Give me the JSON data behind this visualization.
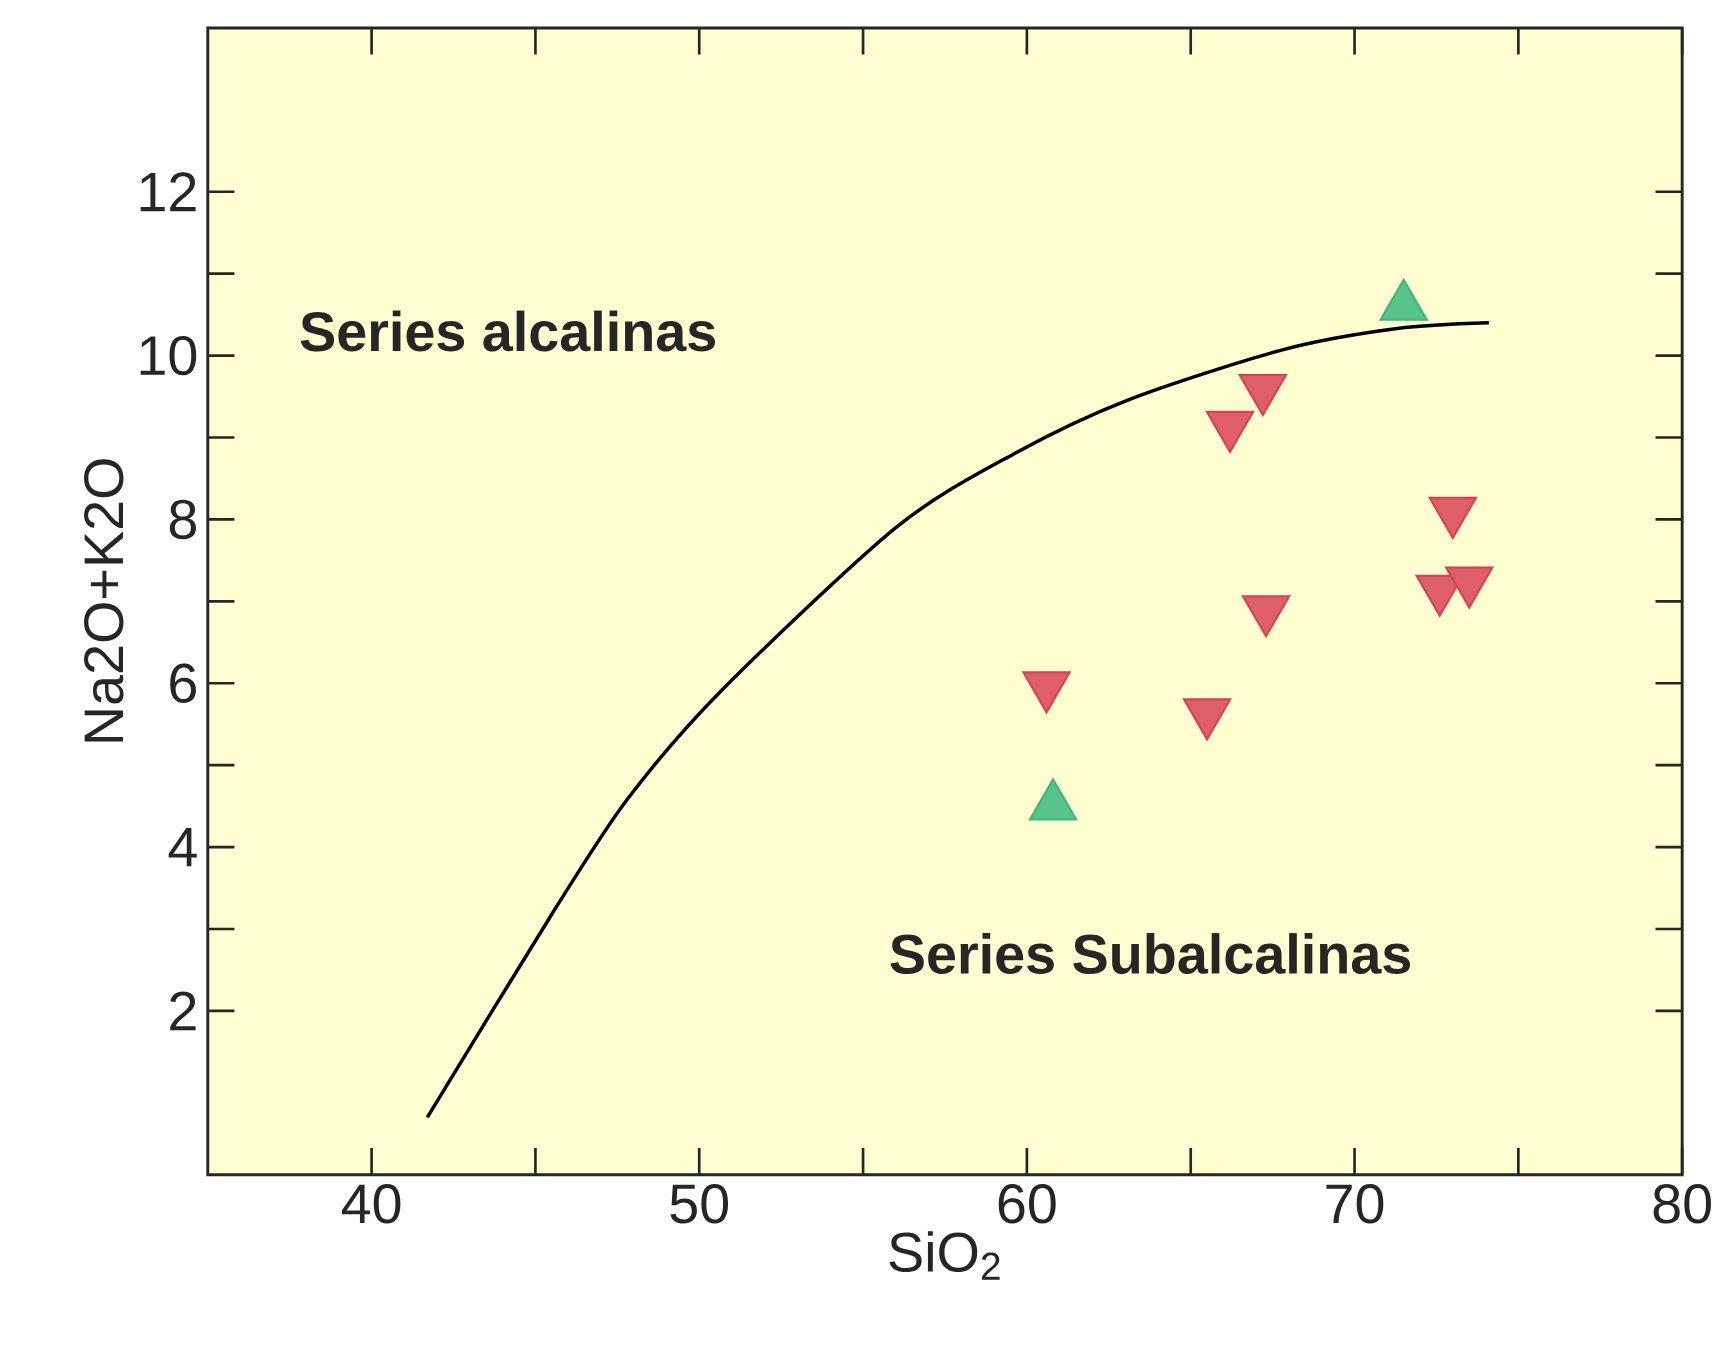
{
  "chart_data": {
    "type": "scatter",
    "xlabel": "SiO$_{2}$",
    "ylabel": "Na2O+K2O",
    "xlim": [
      35,
      80
    ],
    "ylim": [
      0,
      14
    ],
    "xticks": [
      40,
      50,
      60,
      70,
      80
    ],
    "yticks": [
      2,
      4,
      6,
      8,
      10,
      12
    ],
    "grid": false,
    "series": [
      {
        "type": "line",
        "color": "#000000",
        "marker": "none",
        "line_style": "solid",
        "x": [
          41.7,
          45.5,
          47.8,
          50.65,
          56.0,
          59.6,
          63.1,
          67.8,
          71.3,
          74.1
        ],
        "values": [
          0.7,
          3.18,
          4.58,
          5.9,
          7.9,
          8.8,
          9.46,
          10.07,
          10.33,
          10.4
        ]
      },
      {
        "color": "#d9434e",
        "marker": "triangle-down",
        "x": [
          67.2,
          66.2,
          73.0,
          72.6,
          73.5,
          67.3,
          60.6,
          65.5
        ],
        "values": [
          9.6,
          9.15,
          8.1,
          7.15,
          7.25,
          6.9,
          5.97,
          5.64
        ]
      },
      {
        "color": "#3cb878",
        "marker": "triangle",
        "x": [
          71.5,
          60.8
        ],
        "values": [
          10.6,
          4.5
        ]
      }
    ],
    "annotations": [
      "Series alcalinas",
      "Series Subalcalinas"
    ]
  }
}
